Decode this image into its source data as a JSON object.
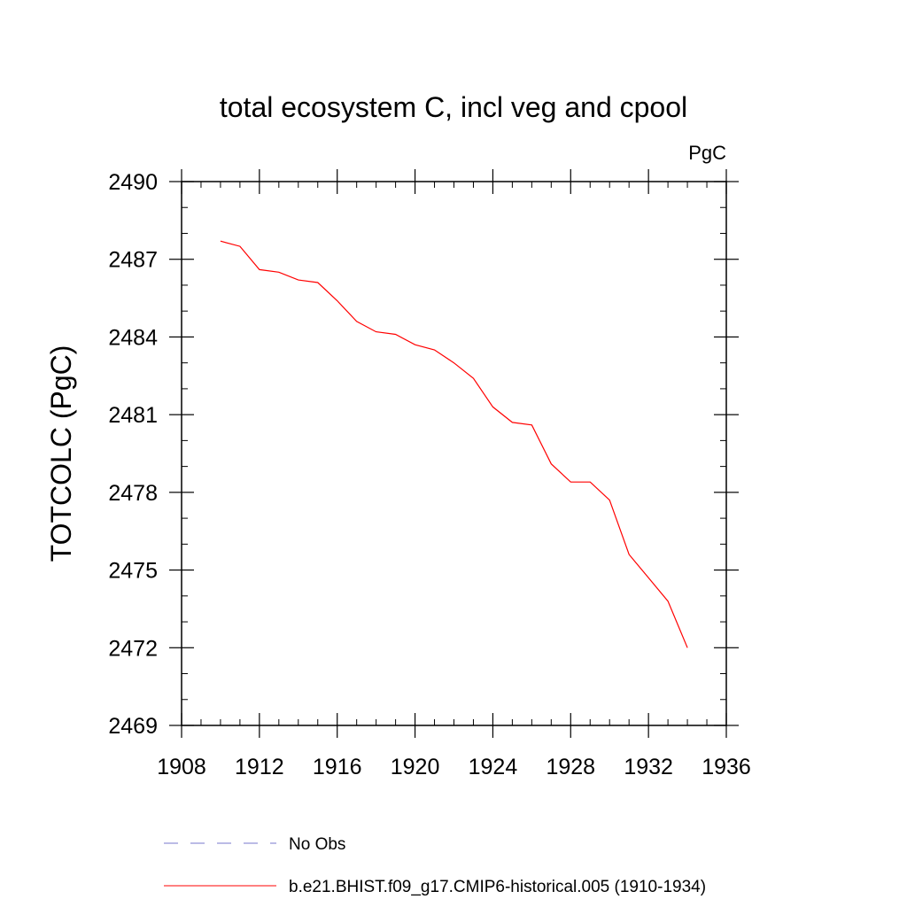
{
  "chart_data": {
    "type": "line",
    "title": "total ecosystem C, incl veg and cpool",
    "units_label": "PgC",
    "ylabel": "TOTCOLC  (PgC)",
    "xlabel": "",
    "xlim": [
      1908,
      1936
    ],
    "ylim": [
      2469,
      2490
    ],
    "x_ticks": [
      1908,
      1912,
      1916,
      1920,
      1924,
      1928,
      1932,
      1936
    ],
    "y_ticks": [
      2469,
      2472,
      2475,
      2478,
      2481,
      2484,
      2487,
      2490
    ],
    "grid": false,
    "legend_position": "bottom",
    "series": [
      {
        "name": "No Obs",
        "color": "#7777cc",
        "dash": "dashed",
        "x": [],
        "y": []
      },
      {
        "name": "b.e21.BHIST.f09_g17.CMIP6-historical.005 (1910-1934)",
        "color": "#ff0000",
        "dash": "solid",
        "x": [
          1910,
          1911,
          1912,
          1913,
          1914,
          1915,
          1916,
          1917,
          1918,
          1919,
          1920,
          1921,
          1922,
          1923,
          1924,
          1925,
          1926,
          1927,
          1928,
          1929,
          1930,
          1931,
          1932,
          1933,
          1934
        ],
        "y": [
          2487.7,
          2487.5,
          2486.6,
          2486.5,
          2486.2,
          2486.1,
          2485.4,
          2484.6,
          2484.2,
          2484.1,
          2483.7,
          2483.5,
          2483.0,
          2482.4,
          2481.3,
          2480.7,
          2480.6,
          2479.1,
          2478.4,
          2478.4,
          2477.7,
          2475.6,
          2474.7,
          2473.8,
          2472.0
        ]
      }
    ]
  }
}
